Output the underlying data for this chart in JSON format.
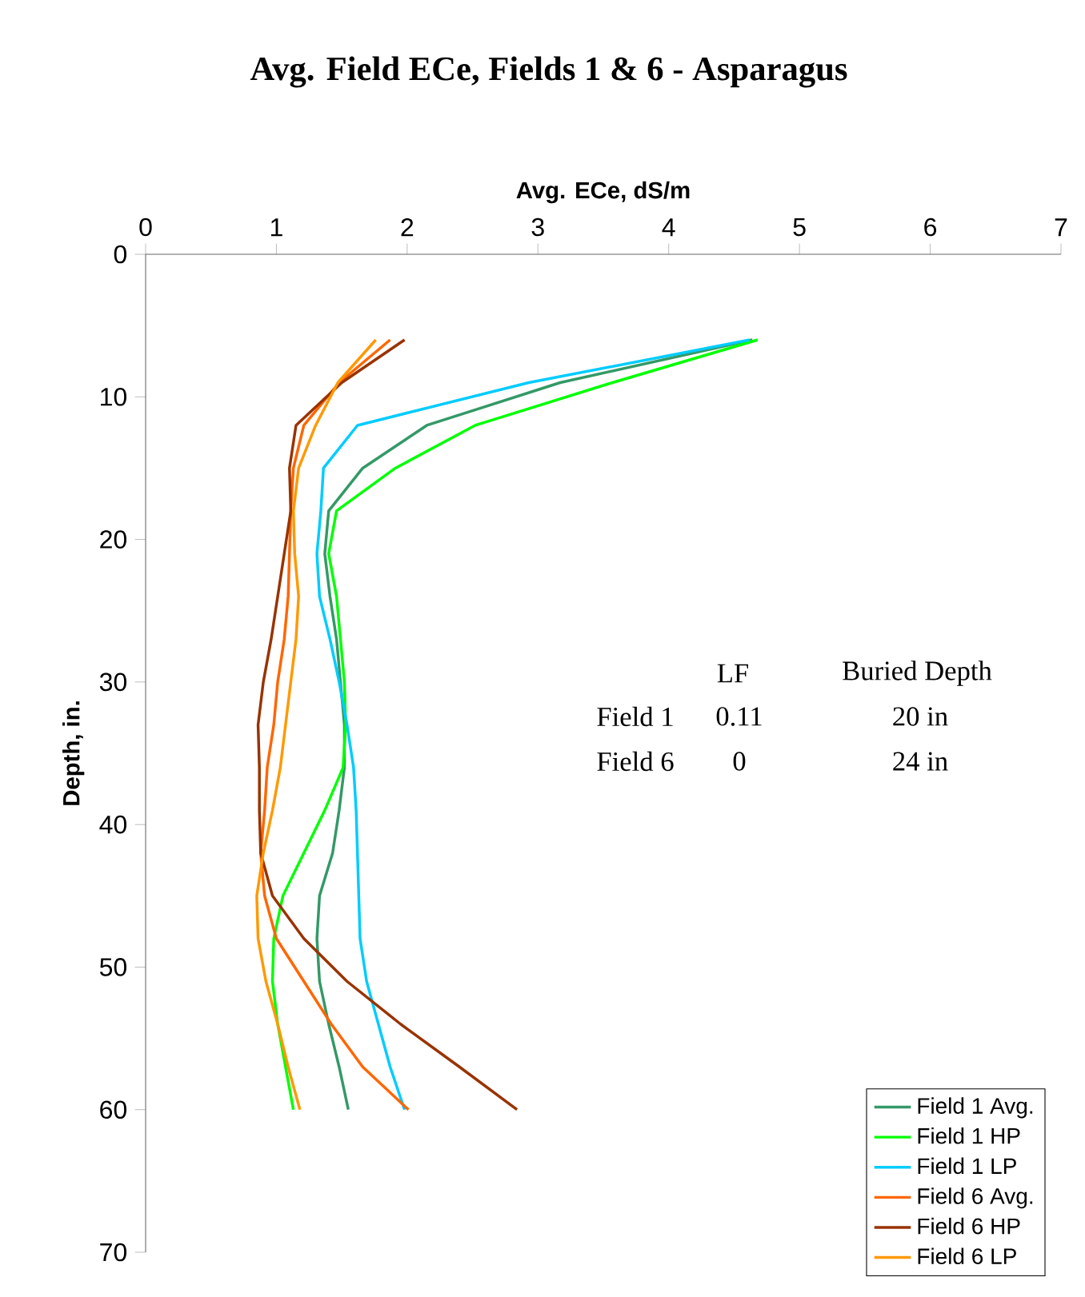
{
  "chart_data": {
    "type": "line",
    "title": "Avg. Field ECe, Fields 1 & 6 - Asparagus",
    "xlabel": "Avg. ECe, dS/m",
    "ylabel": "Depth, in.",
    "xlim": [
      0,
      7
    ],
    "xticks": [
      0,
      1,
      2,
      3,
      4,
      5,
      6,
      7
    ],
    "ylim": [
      70,
      0
    ],
    "yticks": [
      0,
      10,
      20,
      30,
      40,
      50,
      60,
      70
    ],
    "grid": false,
    "legend": "bottom right",
    "marker": "none",
    "line_style": "solid",
    "annotations": [
      "LF",
      "Buried Depth",
      "Field 1",
      "0.11",
      "20 in",
      "Field 6",
      "0",
      "24 in"
    ],
    "series": [
      {
        "name": "Field 1 Avg.",
        "color": "#339966",
        "x": [
          4.64,
          3.17,
          2.15,
          1.66,
          1.4,
          1.37,
          1.41,
          1.46,
          1.49,
          1.52,
          1.52,
          1.48,
          1.43,
          1.33,
          1.31,
          1.33,
          1.4,
          1.48,
          1.55
        ],
        "values": [
          6,
          9,
          12,
          15,
          18,
          21,
          24,
          27,
          30,
          33,
          36,
          39,
          42,
          45,
          48,
          51,
          54,
          57,
          60
        ]
      },
      {
        "name": "Field 1 HP",
        "color": "#00ff00",
        "x": [
          4.68,
          3.57,
          2.52,
          1.91,
          1.46,
          1.4,
          1.46,
          1.49,
          1.52,
          1.53,
          1.51,
          1.37,
          1.21,
          1.05,
          0.98,
          0.97,
          1.01,
          1.07,
          1.13
        ],
        "values": [
          6,
          9,
          12,
          15,
          18,
          21,
          24,
          27,
          30,
          33,
          36,
          39,
          42,
          45,
          48,
          51,
          54,
          57,
          60
        ]
      },
      {
        "name": "Field 1 LP",
        "color": "#00ccff",
        "x": [
          4.62,
          2.93,
          1.62,
          1.36,
          1.34,
          1.31,
          1.33,
          1.41,
          1.48,
          1.54,
          1.59,
          1.61,
          1.62,
          1.63,
          1.64,
          1.69,
          1.78,
          1.87,
          1.98
        ],
        "values": [
          6,
          9,
          12,
          15,
          18,
          21,
          24,
          27,
          30,
          33,
          36,
          39,
          42,
          45,
          48,
          51,
          54,
          57,
          60
        ]
      },
      {
        "name": "Field 6 Avg.",
        "color": "#ff6600",
        "x": [
          1.87,
          1.48,
          1.21,
          1.13,
          1.11,
          1.1,
          1.09,
          1.06,
          1.01,
          0.98,
          0.93,
          0.91,
          0.88,
          0.91,
          1.0,
          1.21,
          1.42,
          1.66,
          2.01
        ],
        "values": [
          6,
          9,
          12,
          15,
          18,
          21,
          24,
          27,
          30,
          33,
          36,
          39,
          42,
          45,
          48,
          51,
          54,
          57,
          60
        ]
      },
      {
        "name": "Field 6 HP",
        "color": "#993300",
        "x": [
          1.98,
          1.5,
          1.15,
          1.1,
          1.11,
          1.06,
          1.01,
          0.96,
          0.9,
          0.86,
          0.87,
          0.87,
          0.88,
          0.97,
          1.21,
          1.54,
          1.95,
          2.4,
          2.84
        ],
        "values": [
          6,
          9,
          12,
          15,
          18,
          21,
          24,
          27,
          30,
          33,
          36,
          39,
          42,
          45,
          48,
          51,
          54,
          57,
          60
        ]
      },
      {
        "name": "Field 6 LP",
        "color": "#ff9900",
        "x": [
          1.76,
          1.47,
          1.3,
          1.17,
          1.13,
          1.14,
          1.17,
          1.15,
          1.11,
          1.07,
          1.03,
          0.97,
          0.9,
          0.85,
          0.86,
          0.92,
          1.01,
          1.09,
          1.18
        ],
        "values": [
          6,
          9,
          12,
          15,
          18,
          21,
          24,
          27,
          30,
          33,
          36,
          39,
          42,
          45,
          48,
          51,
          54,
          57,
          60
        ]
      }
    ]
  }
}
